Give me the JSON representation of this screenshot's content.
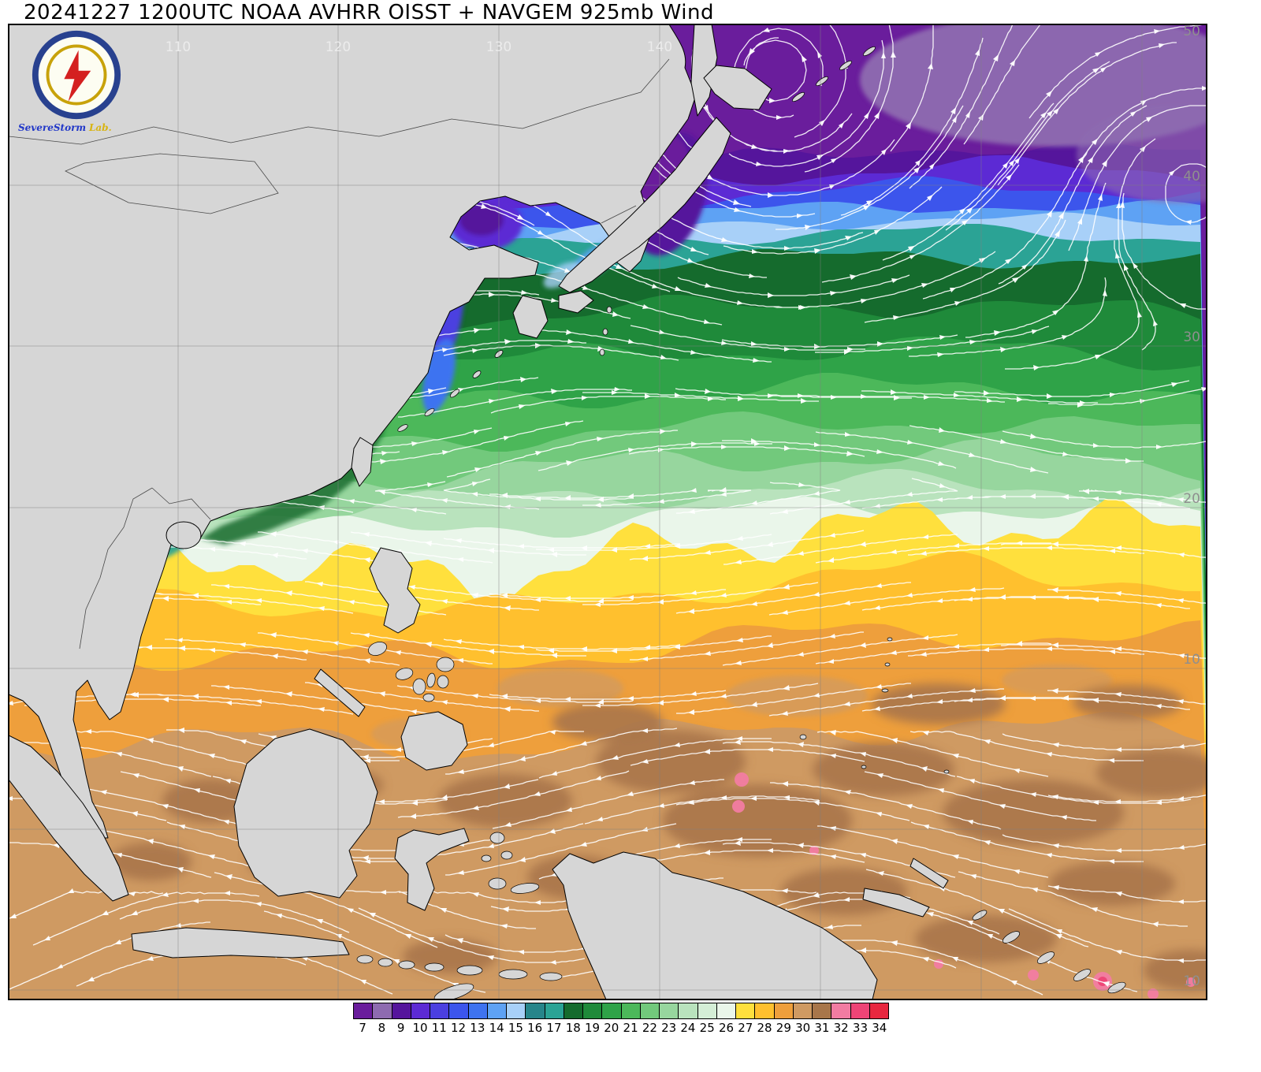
{
  "header": {
    "title": "20241227 1200UTC NOAA AVHRR OISST + NAVGEM 925mb Wind"
  },
  "logo": {
    "name_main": "SevereStorm",
    "name_suffix": "Lab."
  },
  "map": {
    "lon_labels": [
      "110",
      "120",
      "130",
      "140"
    ],
    "lat_labels": [
      "50",
      "40",
      "30",
      "20",
      "10",
      "10"
    ]
  },
  "colorbar": {
    "values": [
      "7",
      "8",
      "9",
      "10",
      "11",
      "12",
      "13",
      "14",
      "15",
      "16",
      "17",
      "18",
      "19",
      "20",
      "21",
      "22",
      "23",
      "24",
      "25",
      "26",
      "27",
      "28",
      "29",
      "30",
      "31",
      "32",
      "33",
      "34"
    ],
    "colors": [
      "#6a1d9c",
      "#8e6bb0",
      "#55159c",
      "#5c2ad4",
      "#4b3fe0",
      "#3c55ec",
      "#3e73f0",
      "#5ea2f4",
      "#a8d0f8",
      "#27858a",
      "#2ba395",
      "#156b2d",
      "#1f8a3a",
      "#2fa348",
      "#4cb85a",
      "#72c97c",
      "#97d69e",
      "#b9e3bd",
      "#d4eed6",
      "#eaf6ea",
      "#ffe03d",
      "#ffc02e",
      "#ee9f3c",
      "#cf9a62",
      "#a8764a",
      "#f27ca2",
      "#ee4476",
      "#e8273f"
    ],
    "stream_color": "#ffffff",
    "land_color": "#d6d6d6"
  }
}
